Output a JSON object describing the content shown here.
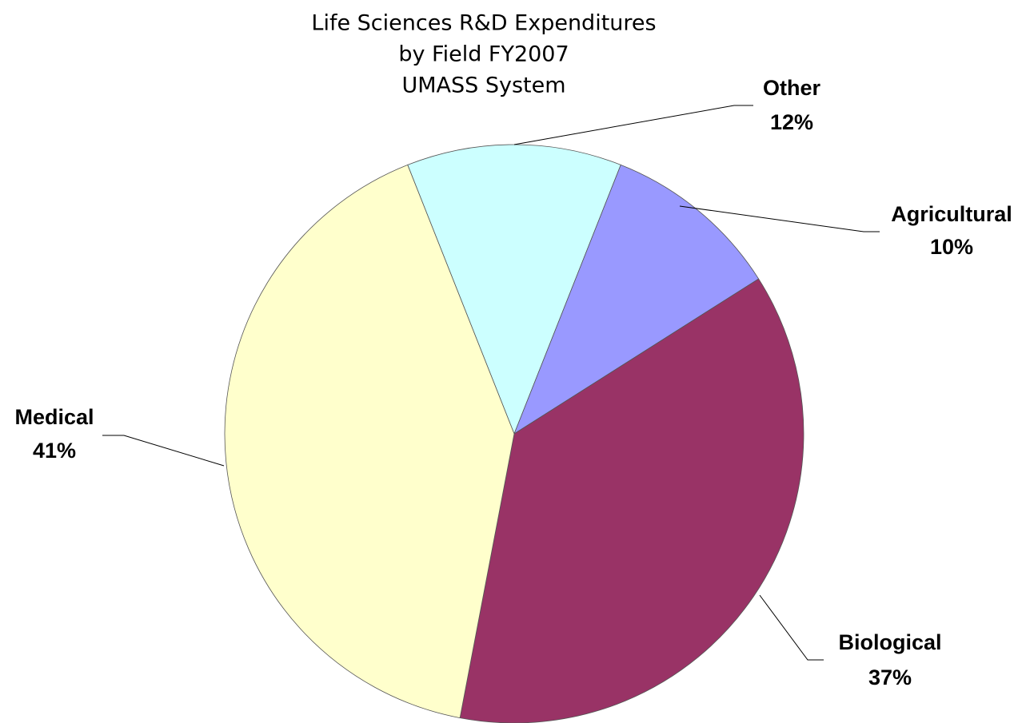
{
  "chart_data": {
    "type": "pie",
    "title": [
      "Life Sciences R&D Expenditures",
      "by Field FY2007",
      "UMASS System"
    ],
    "categories": [
      "Other",
      "Agricultural",
      "Biological",
      "Medical"
    ],
    "values": [
      12,
      10,
      37,
      41
    ],
    "value_labels": [
      "12%",
      "10%",
      "37%",
      "41%"
    ],
    "colors": [
      "#ccffff",
      "#9999ff",
      "#993366",
      "#ffffcc"
    ]
  }
}
